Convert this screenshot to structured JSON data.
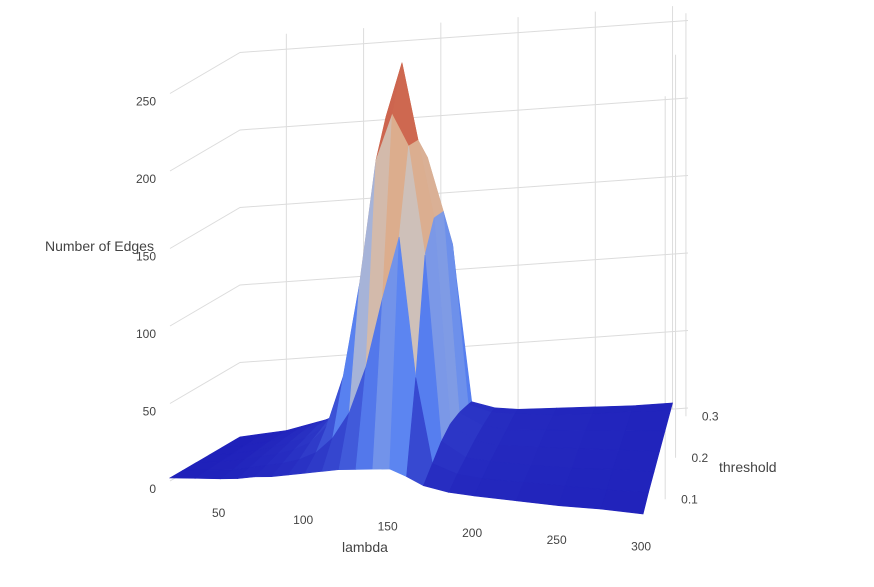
{
  "chart_data": {
    "type": "surface",
    "title": "",
    "zlabel": "Number of Edges",
    "xlabel": "lambda",
    "ylabel": "threshold",
    "z_ticks": [
      "0",
      "50",
      "100",
      "150",
      "200",
      "250"
    ],
    "x_ticks": [
      "50",
      "100",
      "150",
      "200",
      "250",
      "300"
    ],
    "y_ticks": [
      "0.1",
      "0.2",
      "0.3"
    ],
    "zlim": [
      0,
      260
    ],
    "xlim": [
      20,
      310
    ],
    "ylim": [
      0.05,
      0.32
    ],
    "colorscale": [
      "#1d1db8",
      "#5a84f2",
      "#c8c8cc",
      "#e2a57a",
      "#b72020"
    ],
    "lambda": [
      20,
      35,
      50,
      60,
      70,
      80,
      90,
      100,
      110,
      120,
      130,
      140,
      150,
      160,
      170,
      185,
      200,
      225,
      250,
      275,
      300
    ],
    "threshold": [
      0.05,
      0.1,
      0.15,
      0.2,
      0.25,
      0.3,
      0.32
    ],
    "z": [
      [
        2,
        3,
        4,
        5,
        7,
        8,
        10,
        12,
        14,
        16,
        17,
        18,
        19,
        15,
        10,
        7,
        6,
        5,
        4,
        4,
        3
      ],
      [
        2,
        3,
        4,
        6,
        8,
        10,
        13,
        18,
        28,
        45,
        75,
        120,
        160,
        70,
        15,
        9,
        7,
        6,
        5,
        4,
        4
      ],
      [
        2,
        3,
        5,
        7,
        9,
        12,
        17,
        28,
        60,
        120,
        200,
        230,
        210,
        140,
        20,
        10,
        8,
        6,
        5,
        5,
        4
      ],
      [
        2,
        3,
        5,
        7,
        10,
        13,
        19,
        32,
        80,
        150,
        220,
        255,
        205,
        155,
        22,
        11,
        8,
        7,
        6,
        5,
        4
      ],
      [
        2,
        3,
        5,
        7,
        10,
        14,
        20,
        30,
        70,
        140,
        190,
        200,
        185,
        150,
        20,
        11,
        8,
        7,
        6,
        5,
        4
      ],
      [
        2,
        3,
        4,
        6,
        9,
        12,
        17,
        24,
        45,
        90,
        140,
        160,
        150,
        120,
        16,
        10,
        8,
        6,
        5,
        5,
        4
      ],
      [
        2,
        3,
        4,
        6,
        8,
        10,
        14,
        20,
        35,
        70,
        110,
        130,
        120,
        95,
        14,
        9,
        7,
        6,
        5,
        4,
        4
      ]
    ]
  }
}
